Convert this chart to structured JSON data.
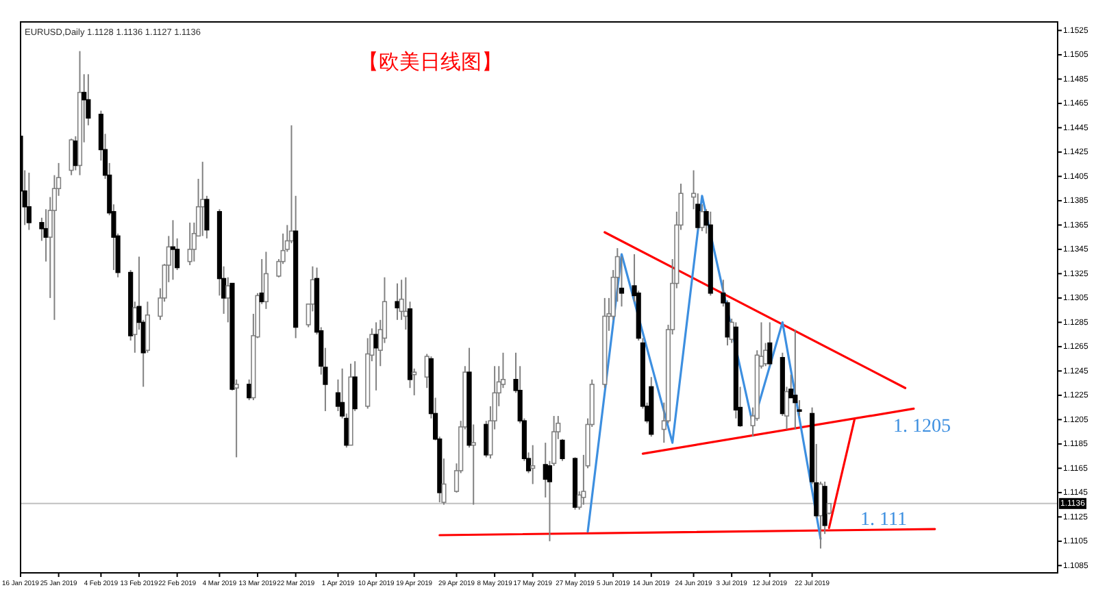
{
  "chart_data": {
    "type": "candlestick",
    "title": "【欧美日线图】",
    "annotations": [
      "EURUSD,Daily 1.1128 1.1136 1.1127 1.1136",
      "1. 1205",
      "1. 111"
    ],
    "x": [
      "2019-01-16",
      "2019-01-17",
      "2019-01-18",
      "2019-01-21",
      "2019-01-22",
      "2019-01-23",
      "2019-01-24",
      "2019-01-25",
      "2019-01-28",
      "2019-01-29",
      "2019-01-30",
      "2019-01-31",
      "2019-02-01",
      "2019-02-04",
      "2019-02-05",
      "2019-02-06",
      "2019-02-07",
      "2019-02-08",
      "2019-02-11",
      "2019-02-12",
      "2019-02-13",
      "2019-02-14",
      "2019-02-15",
      "2019-02-18",
      "2019-02-19",
      "2019-02-20",
      "2019-02-21",
      "2019-02-22",
      "2019-02-25",
      "2019-02-26",
      "2019-02-27",
      "2019-02-28",
      "2019-03-01",
      "2019-03-04",
      "2019-03-05",
      "2019-03-06",
      "2019-03-07",
      "2019-03-08",
      "2019-03-11",
      "2019-03-12",
      "2019-03-13",
      "2019-03-14",
      "2019-03-15",
      "2019-03-18",
      "2019-03-19",
      "2019-03-20",
      "2019-03-21",
      "2019-03-22",
      "2019-03-25",
      "2019-03-26",
      "2019-03-27",
      "2019-03-28",
      "2019-03-29",
      "2019-04-01",
      "2019-04-02",
      "2019-04-03",
      "2019-04-04",
      "2019-04-05",
      "2019-04-08",
      "2019-04-09",
      "2019-04-10",
      "2019-04-11",
      "2019-04-12",
      "2019-04-15",
      "2019-04-16",
      "2019-04-17",
      "2019-04-18",
      "2019-04-19",
      "2019-04-22",
      "2019-04-23",
      "2019-04-24",
      "2019-04-25",
      "2019-04-26",
      "2019-04-29",
      "2019-04-30",
      "2019-05-01",
      "2019-05-02",
      "2019-05-03",
      "2019-05-06",
      "2019-05-07",
      "2019-05-08",
      "2019-05-09",
      "2019-05-10",
      "2019-05-13",
      "2019-05-14",
      "2019-05-15",
      "2019-05-16",
      "2019-05-17",
      "2019-05-20",
      "2019-05-21",
      "2019-05-22",
      "2019-05-23",
      "2019-05-24",
      "2019-05-27",
      "2019-05-28",
      "2019-05-29",
      "2019-05-30",
      "2019-05-31",
      "2019-06-03",
      "2019-06-04",
      "2019-06-05",
      "2019-06-06",
      "2019-06-07",
      "2019-06-10",
      "2019-06-11",
      "2019-06-12",
      "2019-06-13",
      "2019-06-14",
      "2019-06-17",
      "2019-06-18",
      "2019-06-19",
      "2019-06-20",
      "2019-06-21",
      "2019-06-24",
      "2019-06-25",
      "2019-06-26",
      "2019-06-27",
      "2019-06-28",
      "2019-07-01",
      "2019-07-02",
      "2019-07-03",
      "2019-07-04",
      "2019-07-05",
      "2019-07-08",
      "2019-07-09",
      "2019-07-10",
      "2019-07-11",
      "2019-07-12",
      "2019-07-15",
      "2019-07-16",
      "2019-07-17",
      "2019-07-18",
      "2019-07-19",
      "2019-07-22",
      "2019-07-23",
      "2019-07-24",
      "2019-07-25",
      "2019-07-26"
    ],
    "ohlc": [
      [
        1.1438,
        1.144,
        1.1384,
        1.1393
      ],
      [
        1.1393,
        1.141,
        1.1365,
        1.138
      ],
      [
        1.138,
        1.1408,
        1.1361,
        1.1367
      ],
      [
        1.1367,
        1.1371,
        1.1352,
        1.1362
      ],
      [
        1.1362,
        1.1378,
        1.1335,
        1.1355
      ],
      [
        1.1355,
        1.1388,
        1.1305,
        1.1377
      ],
      [
        1.1377,
        1.1406,
        1.1287,
        1.1395
      ],
      [
        1.1395,
        1.1416,
        1.1389,
        1.1404
      ],
      [
        1.141,
        1.1436,
        1.1406,
        1.1435
      ],
      [
        1.1434,
        1.1438,
        1.141,
        1.1414
      ],
      [
        1.1414,
        1.1508,
        1.1406,
        1.1474
      ],
      [
        1.1474,
        1.1489,
        1.1433,
        1.1468
      ],
      [
        1.1468,
        1.1489,
        1.1447,
        1.1453
      ],
      [
        1.1456,
        1.1459,
        1.1418,
        1.1427
      ],
      [
        1.1427,
        1.144,
        1.1403,
        1.1406
      ],
      [
        1.1406,
        1.1416,
        1.1373,
        1.1375
      ],
      [
        1.1376,
        1.1382,
        1.1328,
        1.1355
      ],
      [
        1.1356,
        1.1358,
        1.1322,
        1.1326
      ],
      [
        1.1326,
        1.1328,
        1.127,
        1.1274
      ],
      [
        1.1275,
        1.1302,
        1.126,
        1.1297
      ],
      [
        1.1298,
        1.1339,
        1.1279,
        1.1285
      ],
      [
        1.1285,
        1.1287,
        1.1232,
        1.126
      ],
      [
        1.1262,
        1.1302,
        1.126,
        1.1291
      ],
      [
        1.129,
        1.1313,
        1.1287,
        1.1305
      ],
      [
        1.1305,
        1.1333,
        1.1302,
        1.1332
      ],
      [
        1.1332,
        1.1356,
        1.1318,
        1.1347
      ],
      [
        1.1347,
        1.1369,
        1.132,
        1.1345
      ],
      [
        1.1345,
        1.1354,
        1.1328,
        1.133
      ],
      [
        1.1335,
        1.1367,
        1.1332,
        1.1345
      ],
      [
        1.1345,
        1.1367,
        1.1335,
        1.1358
      ],
      [
        1.1356,
        1.1403,
        1.1356,
        1.138
      ],
      [
        1.138,
        1.1417,
        1.1356,
        1.1386
      ],
      [
        1.1386,
        1.1389,
        1.1354,
        1.1361
      ],
      [
        1.1376,
        1.1378,
        1.1307,
        1.1321
      ],
      [
        1.1321,
        1.1331,
        1.1292,
        1.1305
      ],
      [
        1.1305,
        1.1322,
        1.1285,
        1.1315
      ],
      [
        1.1317,
        1.1317,
        1.1229,
        1.123
      ],
      [
        1.1231,
        1.1238,
        1.1174,
        1.1234
      ],
      [
        1.1234,
        1.1238,
        1.1221,
        1.1223
      ],
      [
        1.1223,
        1.1292,
        1.1221,
        1.1274
      ],
      [
        1.1273,
        1.1309,
        1.1272,
        1.1307
      ],
      [
        1.1309,
        1.1337,
        1.13,
        1.1302
      ],
      [
        1.1302,
        1.1343,
        1.1296,
        1.1325
      ],
      [
        1.1323,
        1.1337,
        1.1322,
        1.1335
      ],
      [
        1.1335,
        1.1358,
        1.1333,
        1.1344
      ],
      [
        1.1345,
        1.1365,
        1.1343,
        1.1352
      ],
      [
        1.1352,
        1.1447,
        1.135,
        1.136
      ],
      [
        1.136,
        1.1389,
        1.1272,
        1.1281
      ],
      [
        1.1283,
        1.13,
        1.1281,
        1.13
      ],
      [
        1.13,
        1.1331,
        1.1294,
        1.132
      ],
      [
        1.1321,
        1.133,
        1.1275,
        1.1277
      ],
      [
        1.1278,
        1.1281,
        1.1242,
        1.1249
      ],
      [
        1.1248,
        1.1264,
        1.1212,
        1.1234
      ],
      [
        1.1227,
        1.1238,
        1.1212,
        1.1216
      ],
      [
        1.1219,
        1.1247,
        1.1206,
        1.1208
      ],
      [
        1.1206,
        1.121,
        1.1182,
        1.1184
      ],
      [
        1.1184,
        1.1251,
        1.1184,
        1.124
      ],
      [
        1.124,
        1.1253,
        1.1212,
        1.1214
      ],
      [
        1.1216,
        1.1272,
        1.1214,
        1.1259
      ],
      [
        1.1258,
        1.128,
        1.1253,
        1.1275
      ],
      [
        1.1275,
        1.1285,
        1.1229,
        1.1264
      ],
      [
        1.1262,
        1.1287,
        1.1249,
        1.1279
      ],
      [
        1.1272,
        1.1322,
        1.1268,
        1.1302
      ],
      [
        1.1302,
        1.1317,
        1.1287,
        1.1297
      ],
      [
        1.1294,
        1.132,
        1.1287,
        1.1304
      ],
      [
        1.129,
        1.1322,
        1.1279,
        1.1294
      ],
      [
        1.1296,
        1.1302,
        1.1231,
        1.1238
      ],
      [
        1.1242,
        1.1247,
        1.1225,
        1.1244
      ],
      [
        1.124,
        1.1259,
        1.1231,
        1.1257
      ],
      [
        1.1255,
        1.1257,
        1.1206,
        1.121
      ],
      [
        1.121,
        1.1223,
        1.1188,
        1.1189
      ],
      [
        1.1189,
        1.1191,
        1.1137,
        1.1145
      ],
      [
        1.1137,
        1.1173,
        1.1135,
        1.1152
      ],
      [
        1.1146,
        1.1169,
        1.1145,
        1.1163
      ],
      [
        1.1163,
        1.1204,
        1.1161,
        1.1199
      ],
      [
        1.1199,
        1.1249,
        1.1197,
        1.1244
      ],
      [
        1.1244,
        1.1264,
        1.1182,
        1.1184
      ],
      [
        1.1184,
        1.1201,
        1.1135,
        1.1186
      ],
      [
        1.1201,
        1.1204,
        1.1174,
        1.1176
      ],
      [
        1.1176,
        1.1216,
        1.1173,
        1.1204
      ],
      [
        1.1204,
        1.1249,
        1.1197,
        1.1227
      ],
      [
        1.1227,
        1.1249,
        1.1216,
        1.1236
      ],
      [
        1.1234,
        1.126,
        1.1231,
        1.1238
      ],
      [
        1.1238,
        1.126,
        1.1227,
        1.1229
      ],
      [
        1.1229,
        1.1249,
        1.1202,
        1.1204
      ],
      [
        1.1204,
        1.1206,
        1.1171,
        1.1173
      ],
      [
        1.1173,
        1.1178,
        1.1161,
        1.1163
      ],
      [
        1.1165,
        1.1184,
        1.1152,
        1.1167
      ],
      [
        1.1168,
        1.1186,
        1.1141,
        1.1156
      ],
      [
        1.1167,
        1.1171,
        1.1105,
        1.1154
      ],
      [
        1.1169,
        1.1208,
        1.1167,
        1.1195
      ],
      [
        1.1195,
        1.1208,
        1.1189,
        1.1202
      ],
      [
        1.1188,
        1.1189,
        1.1171,
        1.1173
      ],
      [
        1.1173,
        1.1174,
        1.1131,
        1.1133
      ],
      [
        1.1133,
        1.1146,
        1.1131,
        1.1143
      ],
      [
        1.1141,
        1.1176,
        1.1135,
        1.1146
      ],
      [
        1.1167,
        1.1206,
        1.1165,
        1.1201
      ],
      [
        1.1201,
        1.1238,
        1.1199,
        1.1234
      ],
      [
        1.1234,
        1.1305,
        1.1231,
        1.129
      ],
      [
        1.129,
        1.1305,
        1.1278,
        1.1292
      ],
      [
        1.129,
        1.1328,
        1.1287,
        1.1322
      ],
      [
        1.1322,
        1.1346,
        1.1302,
        1.1339
      ],
      [
        1.1313,
        1.1339,
        1.1298,
        1.1309
      ],
      [
        1.1315,
        1.1341,
        1.1302,
        1.1307
      ],
      [
        1.1309,
        1.1311,
        1.127,
        1.1272
      ],
      [
        1.1268,
        1.1272,
        1.1214,
        1.1216
      ],
      [
        1.1216,
        1.1219,
        1.1202,
        1.1204
      ],
      [
        1.1232,
        1.124,
        1.1191,
        1.1193
      ],
      [
        1.1197,
        1.1219,
        1.1186,
        1.1204
      ],
      [
        1.1204,
        1.1283,
        1.1202,
        1.1279
      ],
      [
        1.1279,
        1.1337,
        1.1275,
        1.1317
      ],
      [
        1.1317,
        1.1376,
        1.1313,
        1.1365
      ],
      [
        1.1365,
        1.1399,
        1.1361,
        1.1391
      ],
      [
        1.1388,
        1.141,
        1.1378,
        1.1391
      ],
      [
        1.1382,
        1.1391,
        1.1361,
        1.1363
      ],
      [
        1.1363,
        1.1382,
        1.136,
        1.1376
      ],
      [
        1.1376,
        1.1378,
        1.1358,
        1.1365
      ],
      [
        1.1365,
        1.1376,
        1.1307,
        1.1309
      ],
      [
        1.1309,
        1.132,
        1.1298,
        1.1301
      ],
      [
        1.1301,
        1.1303,
        1.1266,
        1.1273
      ],
      [
        1.1271,
        1.1288,
        1.1268,
        1.1285
      ],
      [
        1.1281,
        1.1285,
        1.1206,
        1.1213
      ],
      [
        1.1215,
        1.1232,
        1.1199,
        1.12
      ],
      [
        1.12,
        1.1215,
        1.1191,
        1.1208
      ],
      [
        1.1206,
        1.1262,
        1.1204,
        1.1258
      ],
      [
        1.1249,
        1.1285,
        1.1247,
        1.1257
      ],
      [
        1.1251,
        1.1268,
        1.1249,
        1.1262
      ],
      [
        1.1268,
        1.1285,
        1.1249,
        1.1251
      ],
      [
        1.1256,
        1.126,
        1.1208,
        1.121
      ],
      [
        1.1208,
        1.1232,
        1.1197,
        1.1228
      ],
      [
        1.123,
        1.1242,
        1.1223,
        1.1223
      ],
      [
        1.1225,
        1.1279,
        1.1197,
        1.1219
      ],
      [
        1.1213,
        1.1221,
        1.1208,
        1.1212
      ],
      [
        1.121,
        1.1215,
        1.1152,
        1.1154
      ],
      [
        1.1153,
        1.1185,
        1.1124,
        1.1126
      ],
      [
        1.1126,
        1.1154,
        1.1099,
        1.1152
      ],
      [
        1.115,
        1.1154,
        1.1111,
        1.1118
      ],
      [
        1.1128,
        1.1136,
        1.1127,
        1.1136
      ]
    ],
    "series": [
      {
        "type": "line",
        "color": "#ff0000",
        "x": [
          "2019-06-03",
          "2019-08-13"
        ],
        "values": [
          1.1359,
          1.1231
        ]
      },
      {
        "type": "line",
        "color": "#ff0000",
        "x": [
          "2019-06-12",
          "2019-08-15"
        ],
        "values": [
          1.1177,
          1.1214
        ]
      },
      {
        "type": "line",
        "color": "#ff0000",
        "x": [
          "2019-04-25",
          "2019-08-20"
        ],
        "values": [
          1.111,
          1.1115
        ]
      },
      {
        "type": "line",
        "color": "#ff0000",
        "x": [
          "2019-07-26",
          "2019-08-01"
        ],
        "values": [
          1.1116,
          1.1205
        ]
      },
      {
        "type": "line",
        "color": "#3d8fe0",
        "x": [
          "2019-05-30",
          "2019-06-07",
          "2019-06-19",
          "2019-06-26",
          "2019-07-08",
          "2019-07-15",
          "2019-07-24"
        ],
        "values": [
          1.1113,
          1.1341,
          1.1186,
          1.1389,
          1.1201,
          1.1285,
          1.1107
        ]
      }
    ],
    "ref_lines": [
      {
        "axis": "y",
        "value": 1.1136,
        "label": "1.1136",
        "color": "#c0c0c0"
      }
    ],
    "xlim": [
      "2019-01-16",
      "2019-09-18"
    ],
    "ylim": [
      1.1079,
      1.1532
    ],
    "xticks": [
      {
        "value": "2019-01-16",
        "label": "16 Jan 2019"
      },
      {
        "value": "2019-01-25",
        "label": "25 Jan 2019"
      },
      {
        "value": "2019-02-04",
        "label": "4 Feb 2019"
      },
      {
        "value": "2019-02-13",
        "label": "13 Feb 2019"
      },
      {
        "value": "2019-02-22",
        "label": "22 Feb 2019"
      },
      {
        "value": "2019-03-04",
        "label": "4 Mar 2019"
      },
      {
        "value": "2019-03-13",
        "label": "13 Mar 2019"
      },
      {
        "value": "2019-03-22",
        "label": "22 Mar 2019"
      },
      {
        "value": "2019-04-01",
        "label": "1 Apr 2019"
      },
      {
        "value": "2019-04-10",
        "label": "10 Apr 2019"
      },
      {
        "value": "2019-04-19",
        "label": "19 Apr 2019"
      },
      {
        "value": "2019-04-29",
        "label": "29 Apr 2019"
      },
      {
        "value": "2019-05-08",
        "label": "8 May 2019"
      },
      {
        "value": "2019-05-17",
        "label": "17 May 2019"
      },
      {
        "value": "2019-05-27",
        "label": "27 May 2019"
      },
      {
        "value": "2019-06-05",
        "label": "5 Jun 2019"
      },
      {
        "value": "2019-06-14",
        "label": "14 Jun 2019"
      },
      {
        "value": "2019-06-24",
        "label": "24 Jun 2019"
      },
      {
        "value": "2019-07-03",
        "label": "3 Jul 2019"
      },
      {
        "value": "2019-07-12",
        "label": "12 Jul 2019"
      },
      {
        "value": "2019-07-22",
        "label": "22 Jul 2019"
      }
    ],
    "yticks": [
      1.1085,
      1.1105,
      1.1125,
      1.1145,
      1.1165,
      1.1185,
      1.1205,
      1.1225,
      1.1245,
      1.1265,
      1.1285,
      1.1305,
      1.1325,
      1.1345,
      1.1365,
      1.1385,
      1.1405,
      1.1425,
      1.1445,
      1.1465,
      1.1485,
      1.1505,
      1.1525
    ]
  }
}
